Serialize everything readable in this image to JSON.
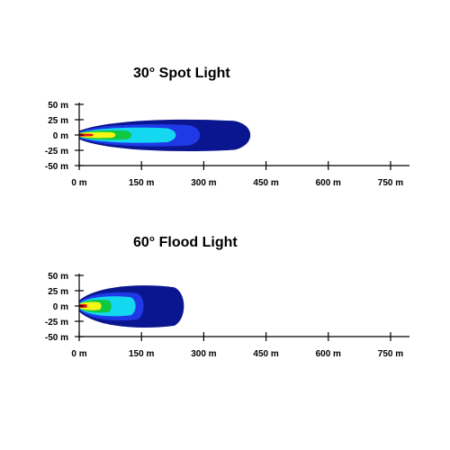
{
  "chart_data": [
    {
      "type": "heatmap",
      "title": "30° Spot Light",
      "xlabel": "",
      "ylabel": "",
      "x_ticks": [
        0,
        150,
        300,
        450,
        600,
        750
      ],
      "x_tick_labels": [
        "0 m",
        "150 m",
        "300 m",
        "450 m",
        "600 m",
        "750 m"
      ],
      "y_ticks": [
        50,
        25,
        0,
        -25,
        -50
      ],
      "y_tick_labels": [
        "50 m",
        "25 m",
        "0 m",
        "-25 m",
        "-50 m"
      ],
      "xlim": [
        0,
        800
      ],
      "ylim": [
        -50,
        50
      ],
      "grid": false,
      "legend": "none",
      "contours": [
        {
          "color": "#0a168f",
          "x_extent": [
            0,
            425
          ],
          "y_half_width": 27
        },
        {
          "color": "#1f39e6",
          "x_extent": [
            0,
            300
          ],
          "y_half_width": 19
        },
        {
          "color": "#14d8f0",
          "x_extent": [
            0,
            240
          ],
          "y_half_width": 13
        },
        {
          "color": "#11c940",
          "x_extent": [
            0,
            130
          ],
          "y_half_width": 8
        },
        {
          "color": "#f5f516",
          "x_extent": [
            0,
            90
          ],
          "y_half_width": 5
        },
        {
          "color": "#e8161a",
          "x_extent": [
            0,
            35
          ],
          "y_half_width": 2
        }
      ]
    },
    {
      "type": "heatmap",
      "title": "60° Flood Light",
      "xlabel": "",
      "ylabel": "",
      "x_ticks": [
        0,
        150,
        300,
        450,
        600,
        750
      ],
      "x_tick_labels": [
        "0 m",
        "150 m",
        "300 m",
        "450 m",
        "600 m",
        "750 m"
      ],
      "y_ticks": [
        50,
        25,
        0,
        -25,
        -50
      ],
      "y_tick_labels": [
        "50 m",
        "25 m",
        "0 m",
        "-25 m",
        "-50 m"
      ],
      "xlim": [
        0,
        800
      ],
      "ylim": [
        -50,
        50
      ],
      "grid": false,
      "legend": "none",
      "contours": [
        {
          "color": "#0a168f",
          "x_extent": [
            0,
            260
          ],
          "y_half_width": 36
        },
        {
          "color": "#1f39e6",
          "x_extent": [
            0,
            160
          ],
          "y_half_width": 24
        },
        {
          "color": "#14d8f0",
          "x_extent": [
            0,
            140
          ],
          "y_half_width": 17
        },
        {
          "color": "#11c940",
          "x_extent": [
            0,
            80
          ],
          "y_half_width": 11
        },
        {
          "color": "#f5f516",
          "x_extent": [
            0,
            55
          ],
          "y_half_width": 7
        },
        {
          "color": "#e8161a",
          "x_extent": [
            0,
            20
          ],
          "y_half_width": 3
        }
      ]
    }
  ]
}
